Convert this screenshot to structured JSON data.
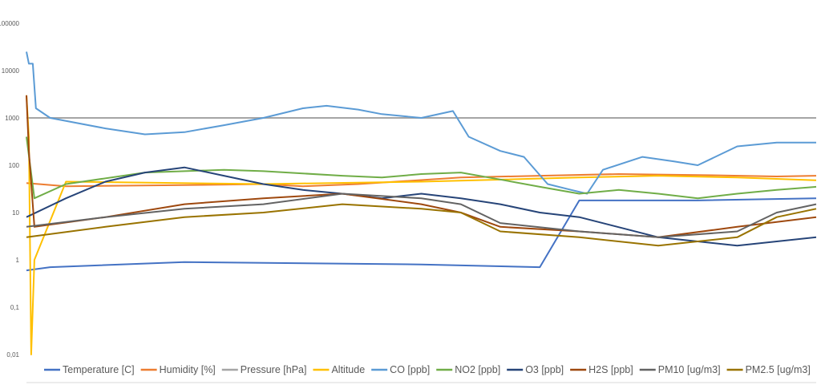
{
  "chart_data": {
    "type": "line",
    "title": "",
    "xlabel": "",
    "ylabel": "",
    "yscale": "log",
    "ylim": [
      0.01,
      100000
    ],
    "y_ticks": [
      0.01,
      0.1,
      1,
      10,
      100,
      1000,
      10000,
      100000
    ],
    "y_tick_labels": [
      "0,01",
      "0,1",
      "1",
      "10",
      "100",
      "1000",
      "10000",
      "100000"
    ],
    "grid": false,
    "legend_position": "bottom",
    "series": [
      {
        "name": "Temperature [C]",
        "color": "#4472C4",
        "points": [
          [
            0,
            0.6
          ],
          [
            0.03,
            0.7
          ],
          [
            0.2,
            0.9
          ],
          [
            0.5,
            0.8
          ],
          [
            0.65,
            0.7
          ],
          [
            0.7,
            18
          ],
          [
            0.85,
            18
          ],
          [
            1,
            20
          ]
        ]
      },
      {
        "name": "Humidity [%]",
        "color": "#ED7D31",
        "points": [
          [
            0,
            42
          ],
          [
            0.05,
            36
          ],
          [
            0.2,
            38
          ],
          [
            0.3,
            40
          ],
          [
            0.35,
            36
          ],
          [
            0.42,
            40
          ],
          [
            0.55,
            55
          ],
          [
            0.65,
            60
          ],
          [
            0.75,
            65
          ],
          [
            0.85,
            62
          ],
          [
            0.95,
            58
          ],
          [
            1,
            60
          ]
        ]
      },
      {
        "name": "Pressure [hPa]",
        "color": "#A5A5A5",
        "points": [
          [
            0,
            1000
          ],
          [
            1,
            1000
          ]
        ]
      },
      {
        "name": "Altitude",
        "color": "#FFC000",
        "points": [
          [
            0,
            3000
          ],
          [
            0.003,
            400
          ],
          [
            0.006,
            0.01
          ],
          [
            0.01,
            1
          ],
          [
            0.05,
            45
          ],
          [
            0.3,
            40
          ],
          [
            0.5,
            45
          ],
          [
            0.7,
            55
          ],
          [
            0.8,
            60
          ],
          [
            0.9,
            55
          ],
          [
            1,
            48
          ]
        ]
      },
      {
        "name": "CO [ppb]",
        "color": "#5B9BD5",
        "points": [
          [
            0,
            25000
          ],
          [
            0.003,
            14000
          ],
          [
            0.008,
            14000
          ],
          [
            0.012,
            1600
          ],
          [
            0.03,
            1000
          ],
          [
            0.1,
            600
          ],
          [
            0.15,
            450
          ],
          [
            0.2,
            500
          ],
          [
            0.25,
            700
          ],
          [
            0.3,
            1000
          ],
          [
            0.35,
            1600
          ],
          [
            0.38,
            1800
          ],
          [
            0.42,
            1500
          ],
          [
            0.45,
            1200
          ],
          [
            0.5,
            1000
          ],
          [
            0.54,
            1400
          ],
          [
            0.56,
            400
          ],
          [
            0.6,
            200
          ],
          [
            0.63,
            150
          ],
          [
            0.66,
            40
          ],
          [
            0.69,
            30
          ],
          [
            0.71,
            25
          ],
          [
            0.73,
            80
          ],
          [
            0.78,
            150
          ],
          [
            0.82,
            120
          ],
          [
            0.85,
            100
          ],
          [
            0.9,
            250
          ],
          [
            0.95,
            300
          ],
          [
            1,
            300
          ]
        ]
      },
      {
        "name": "NO2 [ppb]",
        "color": "#70AD47",
        "points": [
          [
            0,
            400
          ],
          [
            0.01,
            20
          ],
          [
            0.05,
            40
          ],
          [
            0.15,
            70
          ],
          [
            0.25,
            80
          ],
          [
            0.3,
            75
          ],
          [
            0.4,
            60
          ],
          [
            0.45,
            55
          ],
          [
            0.5,
            65
          ],
          [
            0.55,
            70
          ],
          [
            0.6,
            50
          ],
          [
            0.65,
            35
          ],
          [
            0.7,
            25
          ],
          [
            0.75,
            30
          ],
          [
            0.8,
            25
          ],
          [
            0.85,
            20
          ],
          [
            0.9,
            25
          ],
          [
            0.95,
            30
          ],
          [
            1,
            35
          ]
        ]
      },
      {
        "name": "O3 [ppb]",
        "color": "#264478",
        "points": [
          [
            0,
            8
          ],
          [
            0.05,
            20
          ],
          [
            0.1,
            45
          ],
          [
            0.15,
            70
          ],
          [
            0.2,
            90
          ],
          [
            0.25,
            60
          ],
          [
            0.3,
            40
          ],
          [
            0.35,
            30
          ],
          [
            0.4,
            25
          ],
          [
            0.45,
            20
          ],
          [
            0.5,
            25
          ],
          [
            0.55,
            20
          ],
          [
            0.6,
            15
          ],
          [
            0.65,
            10
          ],
          [
            0.7,
            8
          ],
          [
            0.8,
            3
          ],
          [
            0.9,
            2
          ],
          [
            1,
            3
          ]
        ]
      },
      {
        "name": "H2S [ppb]",
        "color": "#9E480E",
        "points": [
          [
            0,
            3000
          ],
          [
            0.003,
            200
          ],
          [
            0.01,
            5
          ],
          [
            0.1,
            8
          ],
          [
            0.2,
            15
          ],
          [
            0.3,
            20
          ],
          [
            0.4,
            25
          ],
          [
            0.5,
            15
          ],
          [
            0.55,
            10
          ],
          [
            0.6,
            5
          ],
          [
            0.7,
            4
          ],
          [
            0.8,
            3
          ],
          [
            0.9,
            5
          ],
          [
            1,
            8
          ]
        ]
      },
      {
        "name": "PM10 [ug/m3]",
        "color": "#636363",
        "points": [
          [
            0,
            5
          ],
          [
            0.1,
            8
          ],
          [
            0.2,
            12
          ],
          [
            0.3,
            15
          ],
          [
            0.4,
            25
          ],
          [
            0.5,
            20
          ],
          [
            0.55,
            15
          ],
          [
            0.6,
            6
          ],
          [
            0.7,
            4
          ],
          [
            0.8,
            3
          ],
          [
            0.9,
            4
          ],
          [
            0.95,
            10
          ],
          [
            1,
            15
          ]
        ]
      },
      {
        "name": "PM2.5 [ug/m3]",
        "color": "#997300",
        "points": [
          [
            0,
            3
          ],
          [
            0.1,
            5
          ],
          [
            0.2,
            8
          ],
          [
            0.3,
            10
          ],
          [
            0.4,
            15
          ],
          [
            0.5,
            12
          ],
          [
            0.55,
            10
          ],
          [
            0.6,
            4
          ],
          [
            0.7,
            3
          ],
          [
            0.8,
            2
          ],
          [
            0.9,
            3
          ],
          [
            0.95,
            8
          ],
          [
            1,
            12
          ]
        ]
      }
    ]
  }
}
